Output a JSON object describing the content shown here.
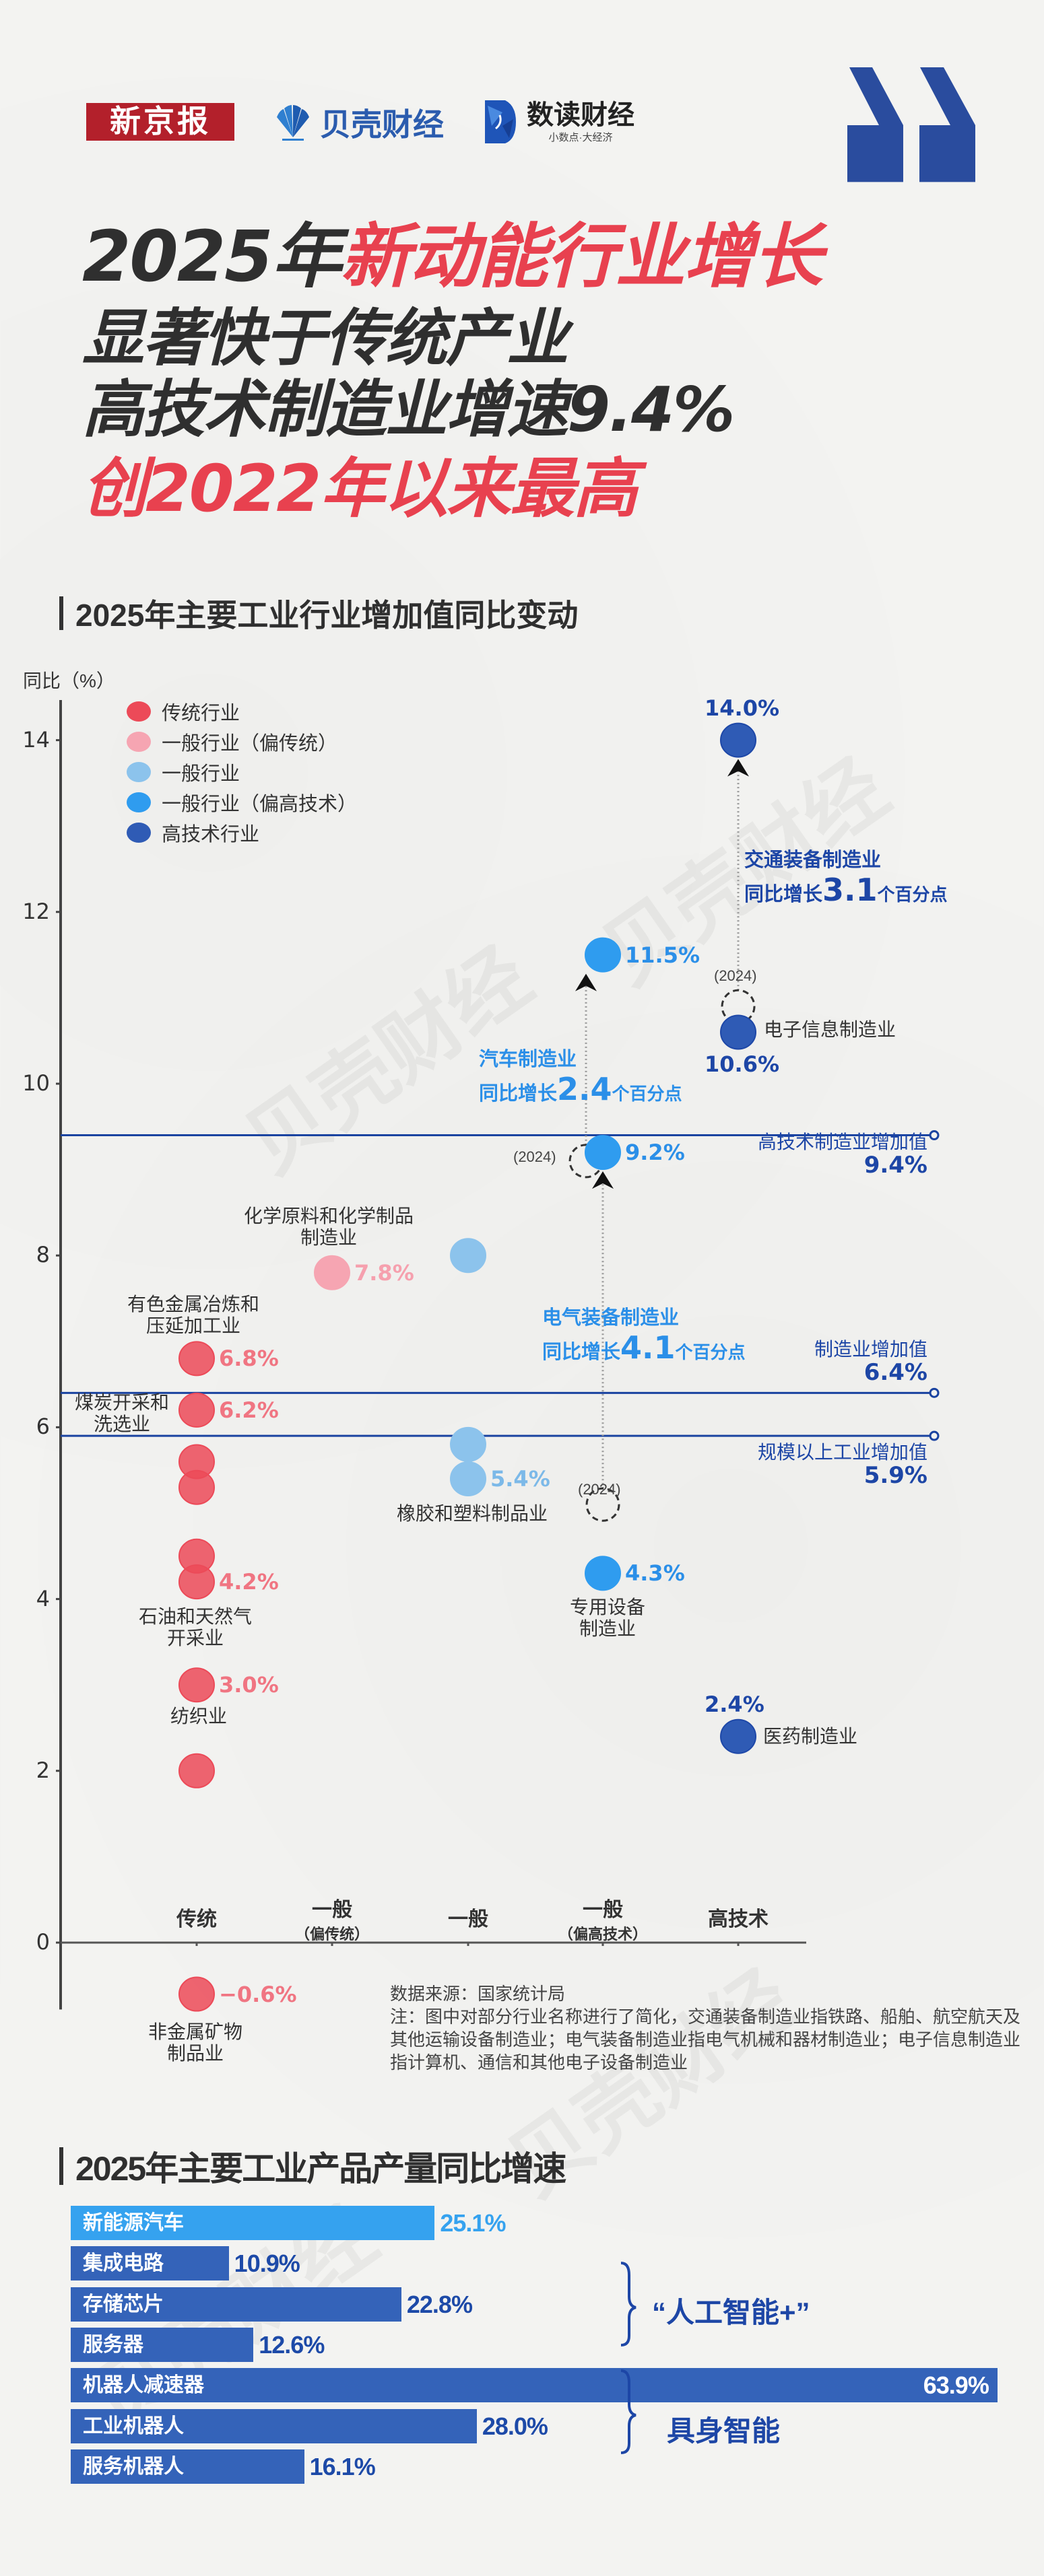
{
  "header": {
    "logo_xjb": "新京报",
    "logo_beike": "贝壳财经",
    "logo_shudu": "数读财经",
    "logo_shudu_slogan": "小数点·大经济",
    "title_line1_a": "2025年",
    "title_line1_b": "新动能行业增长",
    "title_line2": "显著快于传统产业",
    "title_line3": "高技术制造业增速9.4%",
    "title_line4": "创2022年以来最高"
  },
  "watermark": "贝壳财经",
  "colors": {
    "traditional": "#ec4a58",
    "general_traditional": "#f6a5b2",
    "general": "#8cc3ec",
    "general_hightech": "#2f9cef",
    "hightech": "#2f5bb5",
    "reference_line": "#1a43a0",
    "bar_highlight": "#35a2ef",
    "bar_default": "#3463b9",
    "title_red": "#e8414f"
  },
  "chart_data": [
    {
      "type": "scatter",
      "title": "2025年主要工业行业增加值同比变动",
      "ylabel": "同比（%）",
      "ylim": [
        -0.7,
        14.5
      ],
      "yticks": [
        0,
        2,
        4,
        6,
        8,
        10,
        12,
        14
      ],
      "categories": [
        {
          "label": "传统",
          "sub": ""
        },
        {
          "label": "一般",
          "sub": "（偏传统）"
        },
        {
          "label": "一般",
          "sub": ""
        },
        {
          "label": "一般",
          "sub": "（偏高技术）"
        },
        {
          "label": "高技术",
          "sub": ""
        }
      ],
      "legend": [
        {
          "group": "traditional",
          "label": "传统行业"
        },
        {
          "group": "general_traditional",
          "label": "一般行业（偏传统）"
        },
        {
          "group": "general",
          "label": "一般行业"
        },
        {
          "group": "general_hightech",
          "label": "一般行业（偏高技术）"
        },
        {
          "group": "hightech",
          "label": "高技术行业"
        }
      ],
      "points": [
        {
          "category": 0,
          "group": "traditional",
          "value": 6.8,
          "label": "6.8%",
          "name": [
            "有色金属冶炼和",
            "压延加工业"
          ]
        },
        {
          "category": 0,
          "group": "traditional",
          "value": 6.2,
          "label": "6.2%",
          "name": [
            "煤炭开采和",
            "洗选业"
          ]
        },
        {
          "category": 0,
          "group": "traditional",
          "value": 5.6
        },
        {
          "category": 0,
          "group": "traditional",
          "value": 5.3
        },
        {
          "category": 0,
          "group": "traditional",
          "value": 4.5
        },
        {
          "category": 0,
          "group": "traditional",
          "value": 4.2,
          "label": "4.2%",
          "name": [
            "石油和天然气",
            "开采业"
          ]
        },
        {
          "category": 0,
          "group": "traditional",
          "value": 3.0,
          "label": "3.0%",
          "name": [
            "纺织业"
          ]
        },
        {
          "category": 0,
          "group": "traditional",
          "value": 2.0
        },
        {
          "category": 0,
          "group": "traditional",
          "value": -0.6,
          "label": "−0.6%",
          "name": [
            "非金属矿物",
            "制品业"
          ]
        },
        {
          "category": 1,
          "group": "general_traditional",
          "value": 7.8,
          "label": "7.8%",
          "name": [
            "化学原料和化学制品",
            "制造业"
          ]
        },
        {
          "category": 2,
          "group": "general",
          "value": 8.0
        },
        {
          "category": 2,
          "group": "general",
          "value": 5.8
        },
        {
          "category": 2,
          "group": "general",
          "value": 5.4,
          "label": "5.4%",
          "name": [
            "橡胶和塑料制品业"
          ]
        },
        {
          "category": 3,
          "group": "general_hightech",
          "value": 11.5,
          "label": "11.5%"
        },
        {
          "category": 3,
          "group": "general_hightech",
          "value": 9.2,
          "label": "9.2%"
        },
        {
          "category": 3,
          "group": "general_hightech",
          "value": 4.3,
          "label": "4.3%",
          "name": [
            "专用设备",
            "制造业"
          ]
        },
        {
          "category": 4,
          "group": "hightech",
          "value": 14.0,
          "label": "14.0%"
        },
        {
          "category": 4,
          "group": "hightech",
          "value": 10.6,
          "label": "10.6%",
          "name": [
            "电子信息制造业"
          ]
        },
        {
          "category": 4,
          "group": "hightech",
          "value": 2.4,
          "label": "2.4%",
          "name": [
            "医药制造业"
          ]
        }
      ],
      "changes": [
        {
          "name": "交通装备制造业",
          "category": 4,
          "from": 10.9,
          "to": 14.0,
          "prefix": "同比增长",
          "delta": "3.1",
          "suffix": "个百分点",
          "year_label": "(2024)"
        },
        {
          "name": "汽车制造业",
          "category": 3,
          "from": 9.1,
          "to": 11.5,
          "prefix": "同比增长",
          "delta": "2.4",
          "suffix": "个百分点",
          "year_label": "(2024)"
        },
        {
          "name": "电气装备制造业",
          "category": 3,
          "from": 5.1,
          "to": 9.2,
          "prefix": "同比增长",
          "delta": "4.1",
          "suffix": "个百分点",
          "year_label": "(2024)"
        }
      ],
      "references": [
        {
          "name": "高技术制造业增加值",
          "value": 9.4,
          "label": "9.4%"
        },
        {
          "name": "制造业增加值",
          "value": 6.4,
          "label": "6.4%"
        },
        {
          "name": "规模以上工业增加值",
          "value": 5.9,
          "label": "5.9%"
        }
      ],
      "source": "数据来源：国家统计局",
      "note": "注：图中对部分行业名称进行了简化，交通装备制造业指铁路、船舶、航空航天及其他运输设备制造业；电气装备制造业指电气机械和器材制造业；电子信息制造业指计算机、通信和其他电子设备制造业"
    },
    {
      "type": "bar",
      "orientation": "horizontal",
      "title": "2025年主要工业产品产量同比增速",
      "categories": [
        "新能源汽车",
        "集成电路",
        "存储芯片",
        "服务器",
        "机器人减速器",
        "工业机器人",
        "服务机器人"
      ],
      "values": [
        25.1,
        10.9,
        22.8,
        12.6,
        63.9,
        28.0,
        16.1
      ],
      "labels": [
        "25.1%",
        "10.9%",
        "22.8%",
        "12.6%",
        "63.9%",
        "28.0%",
        "16.1%"
      ],
      "highlight_index": 0,
      "groups": [
        {
          "label": "“人工智能+”",
          "from": 1,
          "to": 3
        },
        {
          "label": "具身智能",
          "from": 4,
          "to": 6
        }
      ]
    }
  ]
}
